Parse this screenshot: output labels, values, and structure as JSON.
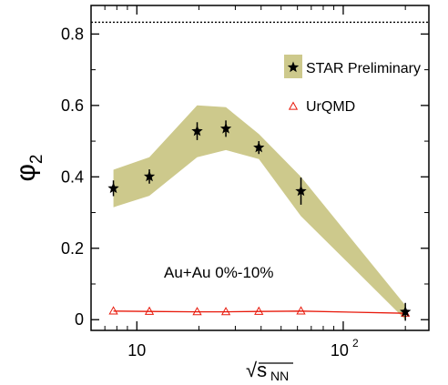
{
  "chart_data": {
    "type": "scatter",
    "x_scale": "log",
    "xlim": [
      6,
      260
    ],
    "ylim": [
      -0.03,
      0.88
    ],
    "y_ticks": [
      0,
      0.2,
      0.4,
      0.6,
      0.8
    ],
    "y_tick_labels": [
      "0",
      "0.2",
      "0.4",
      "0.6",
      "0.8"
    ],
    "x_ticks": [
      10,
      100
    ],
    "x_tick_labels": [
      "10",
      "10",
      "2"
    ],
    "ylabel": "φ",
    "ylabel_sub": "2",
    "xlabel": "√s",
    "xlabel_sub": "NN",
    "reference_line": {
      "y": 0.833,
      "style": "dotted",
      "color": "#000000"
    },
    "annotation": "Au+Au 0%-10%",
    "legend": {
      "position": "top-right"
    },
    "series": [
      {
        "name": "STAR Preliminary",
        "marker": "star",
        "color": "#000000",
        "band_color": "#cdc98c",
        "x": [
          7.7,
          11.5,
          19.6,
          27,
          39,
          62.4,
          200
        ],
        "y": [
          0.368,
          0.401,
          0.528,
          0.535,
          0.482,
          0.36,
          0.022
        ],
        "err": [
          0.022,
          0.02,
          0.025,
          0.023,
          0.018,
          0.038,
          0.025
        ],
        "band_low": [
          0.315,
          0.347,
          0.455,
          0.475,
          0.45,
          0.29,
          0.0
        ],
        "band_high": [
          0.42,
          0.455,
          0.6,
          0.595,
          0.52,
          0.4,
          0.04
        ]
      },
      {
        "name": "UrQMD",
        "marker": "open-triangle",
        "color": "#e8190b",
        "x": [
          7.7,
          11.5,
          19.6,
          27,
          39,
          62.4,
          200
        ],
        "y": [
          0.024,
          0.023,
          0.022,
          0.022,
          0.023,
          0.024,
          0.018
        ]
      }
    ]
  }
}
